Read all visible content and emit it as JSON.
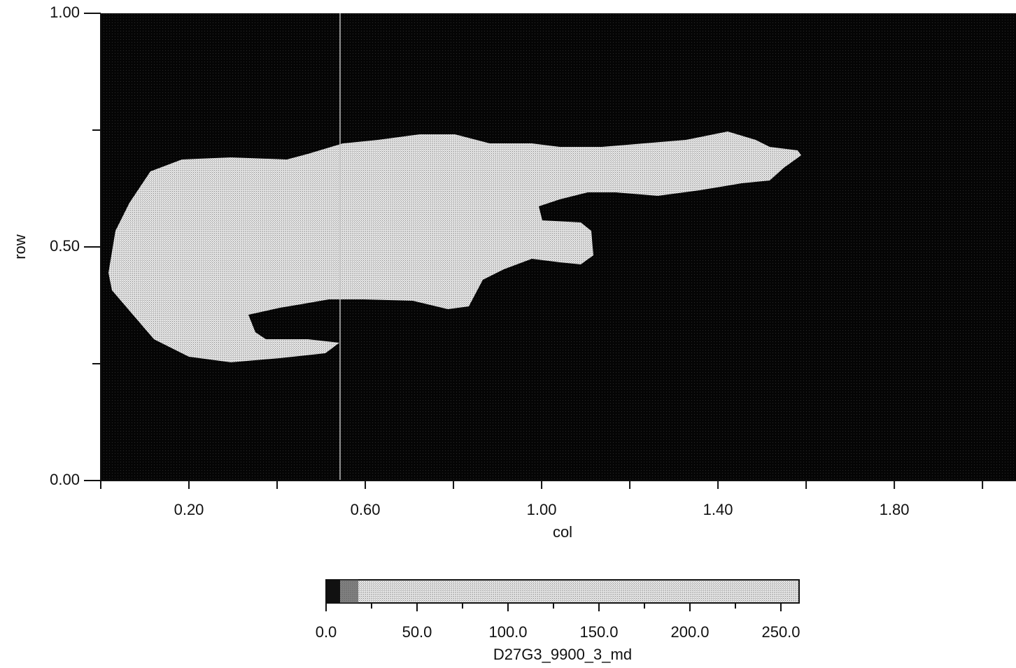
{
  "chart_data": {
    "type": "heatmap",
    "xlabel": "col",
    "ylabel": "row",
    "xlim": [
      0,
      2.076
    ],
    "ylim": [
      0,
      1
    ],
    "xticks": [
      {
        "value": 0.2,
        "label": "0.20"
      },
      {
        "value": 0.6,
        "label": "0.60"
      },
      {
        "value": 1.0,
        "label": "1.00"
      },
      {
        "value": 1.4,
        "label": "1.40"
      },
      {
        "value": 1.8,
        "label": "1.80"
      }
    ],
    "xminorticks": [
      0,
      0.4,
      0.8,
      1.2,
      1.6,
      2.0
    ],
    "yticks": [
      {
        "value": 0,
        "label": "0.00"
      },
      {
        "value": 0.5,
        "label": "0.50"
      },
      {
        "value": 1,
        "label": "1.00"
      }
    ],
    "yminorticks": [
      0.25,
      0.75
    ],
    "colorbar": {
      "label": "D27G3_9900_3_md",
      "lim": [
        0,
        260
      ],
      "ticks": [
        {
          "value": 0,
          "label": "0.0"
        },
        {
          "value": 50,
          "label": "50.0"
        },
        {
          "value": 100,
          "label": "100.0"
        },
        {
          "value": 150,
          "label": "150.0"
        },
        {
          "value": 200,
          "label": "200.0"
        },
        {
          "value": 250,
          "label": "250.0"
        }
      ],
      "minorticks": [
        25,
        75,
        125,
        175,
        225
      ]
    }
  }
}
